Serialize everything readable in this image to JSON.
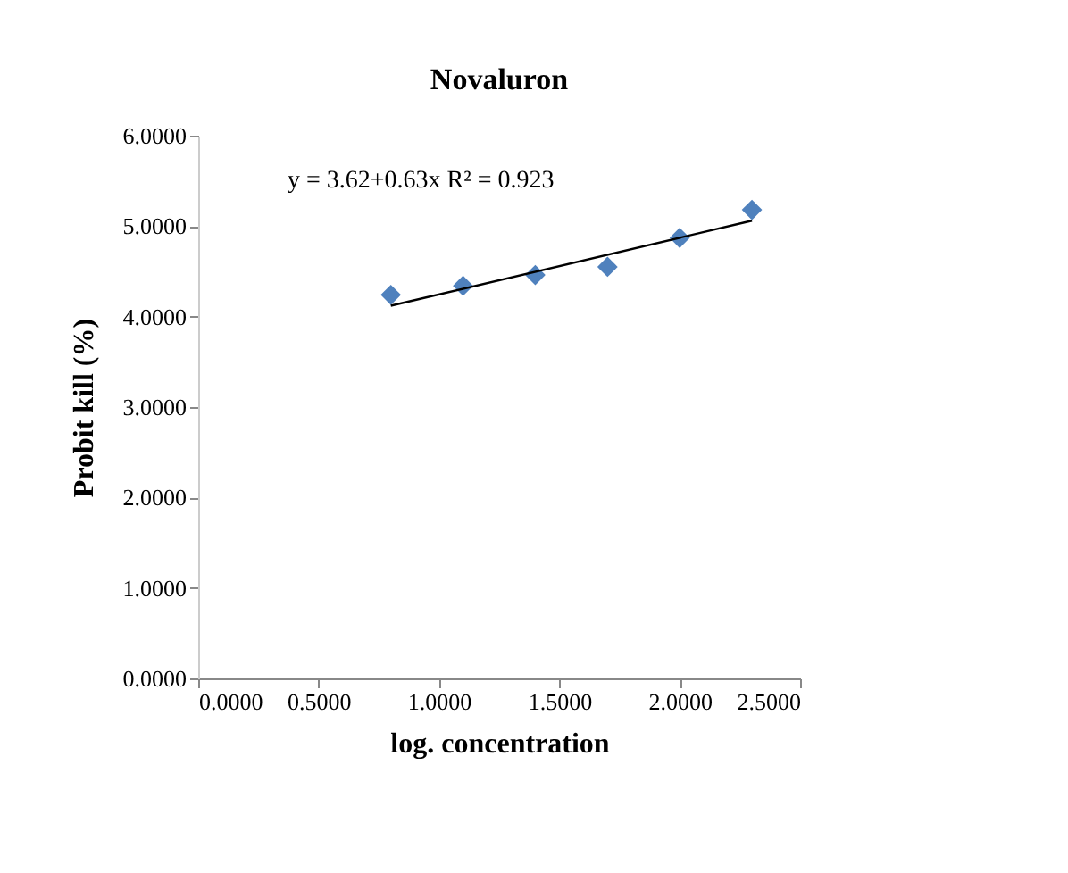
{
  "chart_data": {
    "type": "scatter",
    "title": "Novaluron",
    "xlabel": "log. concentration",
    "ylabel": "Probit kill (%)",
    "x": [
      0.8,
      1.1,
      1.4,
      1.7,
      2.0,
      2.3
    ],
    "series": [
      {
        "color": "#4f81bd",
        "values": [
          4.24,
          4.34,
          4.46,
          4.55,
          4.87,
          5.18
        ],
        "marker": "diamond"
      },
      {
        "type": "line",
        "color": "#000000",
        "x": [
          0.8,
          2.3
        ],
        "values": [
          4.12,
          5.06
        ],
        "line_style": "solid"
      }
    ],
    "annotations": [
      "y = 3.62+0.63x R² = 0.923"
    ],
    "xlim": [
      0,
      2.5
    ],
    "xticks": [
      {
        "value": 0,
        "label": "0.0000"
      },
      {
        "value": 0.5,
        "label": "0.5000"
      },
      {
        "value": 1,
        "label": "1.0000"
      },
      {
        "value": 1.5,
        "label": "1.5000"
      },
      {
        "value": 2,
        "label": "2.0000"
      },
      {
        "value": 2.5,
        "label": "2.5000"
      }
    ],
    "ylim": [
      0,
      6
    ],
    "yticks": [
      {
        "value": 0,
        "label": "0.0000"
      },
      {
        "value": 1,
        "label": "1.0000"
      },
      {
        "value": 2,
        "label": "2.0000"
      },
      {
        "value": 3,
        "label": "3.0000"
      },
      {
        "value": 4,
        "label": "4.0000"
      },
      {
        "value": 5,
        "label": "5.0000"
      },
      {
        "value": 6,
        "label": "6.0000"
      }
    ],
    "grid": false
  }
}
